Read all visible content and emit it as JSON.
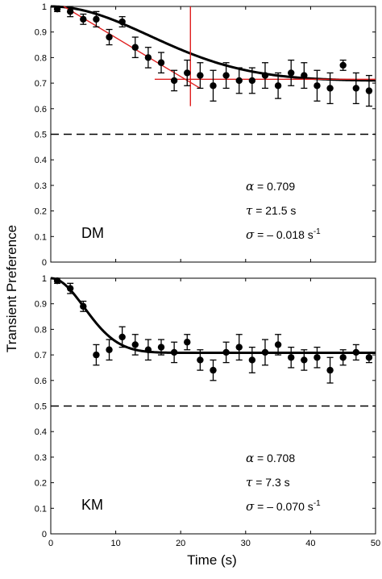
{
  "figure": {
    "ylabel": "Transient Preference",
    "xlabel": "Time (s)"
  },
  "chart_data": [
    {
      "type": "scatter",
      "panel_label": "DM",
      "xlim": [
        0,
        50
      ],
      "ylim": [
        0,
        1
      ],
      "x_ticks": [
        0,
        10,
        20,
        30,
        40,
        50
      ],
      "x_tick_labels": [
        "",
        "",
        "",
        "",
        "",
        ""
      ],
      "y_ticks": [
        0,
        0.1,
        0.2,
        0.3,
        0.4,
        0.5,
        0.6,
        0.7,
        0.8,
        0.9,
        1
      ],
      "y_tick_labels": [
        "0",
        "0.1",
        "0.2",
        "0.3",
        "0.4",
        "0.5",
        "0.6",
        "0.7",
        "0.8",
        "0.9",
        "1"
      ],
      "chance_level": 0.5,
      "points": [
        {
          "x": 1,
          "y": 0.99,
          "err": 0.01
        },
        {
          "x": 3,
          "y": 0.98,
          "err": 0.02
        },
        {
          "x": 5,
          "y": 0.95,
          "err": 0.02
        },
        {
          "x": 7,
          "y": 0.95,
          "err": 0.03
        },
        {
          "x": 9,
          "y": 0.88,
          "err": 0.03
        },
        {
          "x": 11,
          "y": 0.94,
          "err": 0.02
        },
        {
          "x": 13,
          "y": 0.84,
          "err": 0.04
        },
        {
          "x": 15,
          "y": 0.8,
          "err": 0.04
        },
        {
          "x": 17,
          "y": 0.78,
          "err": 0.04
        },
        {
          "x": 19,
          "y": 0.71,
          "err": 0.04
        },
        {
          "x": 21,
          "y": 0.74,
          "err": 0.05
        },
        {
          "x": 23,
          "y": 0.73,
          "err": 0.05
        },
        {
          "x": 25,
          "y": 0.69,
          "err": 0.06
        },
        {
          "x": 27,
          "y": 0.73,
          "err": 0.05
        },
        {
          "x": 29,
          "y": 0.71,
          "err": 0.05
        },
        {
          "x": 31,
          "y": 0.71,
          "err": 0.05
        },
        {
          "x": 33,
          "y": 0.73,
          "err": 0.05
        },
        {
          "x": 35,
          "y": 0.69,
          "err": 0.05
        },
        {
          "x": 37,
          "y": 0.74,
          "err": 0.05
        },
        {
          "x": 39,
          "y": 0.73,
          "err": 0.05
        },
        {
          "x": 41,
          "y": 0.69,
          "err": 0.06
        },
        {
          "x": 43,
          "y": 0.68,
          "err": 0.06
        },
        {
          "x": 45,
          "y": 0.77,
          "err": 0.02
        },
        {
          "x": 47,
          "y": 0.68,
          "err": 0.06
        },
        {
          "x": 49,
          "y": 0.67,
          "err": 0.06
        }
      ],
      "fit": {
        "alpha": 0.709,
        "tau": 21.5,
        "sigma": -0.018
      },
      "fit_color": "#000000",
      "guide": {
        "color": "#e02020",
        "tangent": {
          "x0": 2,
          "y0": 1.0,
          "x1": 23,
          "y1": 0.68
        },
        "asymptote": {
          "x0": 16,
          "x1": 50,
          "y": 0.715
        },
        "vertical": {
          "x": 21.5,
          "y0": 0.61,
          "y1": 1.0
        }
      },
      "annotations": [
        {
          "symbol": "α",
          "text": " = 0.709"
        },
        {
          "symbol": "τ",
          "text": " = 21.5 s"
        },
        {
          "symbol": "σ",
          "text": " = – 0.018 s",
          "sup": "-1"
        }
      ]
    },
    {
      "type": "scatter",
      "panel_label": "KM",
      "xlim": [
        0,
        50
      ],
      "ylim": [
        0,
        1
      ],
      "x_ticks": [
        0,
        10,
        20,
        30,
        40,
        50
      ],
      "x_tick_labels": [
        "0",
        "10",
        "20",
        "30",
        "40",
        "50"
      ],
      "y_ticks": [
        0,
        0.1,
        0.2,
        0.3,
        0.4,
        0.5,
        0.6,
        0.7,
        0.8,
        0.9,
        1
      ],
      "y_tick_labels": [
        "0",
        "0.1",
        "0.2",
        "0.3",
        "0.4",
        "0.5",
        "0.6",
        "0.7",
        "0.8",
        "0.9",
        "1"
      ],
      "chance_level": 0.5,
      "points": [
        {
          "x": 1,
          "y": 0.99,
          "err": 0.01
        },
        {
          "x": 3,
          "y": 0.96,
          "err": 0.02
        },
        {
          "x": 5,
          "y": 0.89,
          "err": 0.02
        },
        {
          "x": 7,
          "y": 0.7,
          "err": 0.04
        },
        {
          "x": 9,
          "y": 0.72,
          "err": 0.04
        },
        {
          "x": 11,
          "y": 0.77,
          "err": 0.04
        },
        {
          "x": 13,
          "y": 0.74,
          "err": 0.04
        },
        {
          "x": 15,
          "y": 0.72,
          "err": 0.04
        },
        {
          "x": 17,
          "y": 0.73,
          "err": 0.03
        },
        {
          "x": 19,
          "y": 0.71,
          "err": 0.04
        },
        {
          "x": 21,
          "y": 0.75,
          "err": 0.03
        },
        {
          "x": 23,
          "y": 0.68,
          "err": 0.04
        },
        {
          "x": 25,
          "y": 0.64,
          "err": 0.04
        },
        {
          "x": 27,
          "y": 0.71,
          "err": 0.04
        },
        {
          "x": 29,
          "y": 0.73,
          "err": 0.05
        },
        {
          "x": 31,
          "y": 0.68,
          "err": 0.05
        },
        {
          "x": 33,
          "y": 0.71,
          "err": 0.05
        },
        {
          "x": 35,
          "y": 0.74,
          "err": 0.04
        },
        {
          "x": 37,
          "y": 0.69,
          "err": 0.04
        },
        {
          "x": 39,
          "y": 0.68,
          "err": 0.04
        },
        {
          "x": 41,
          "y": 0.69,
          "err": 0.04
        },
        {
          "x": 43,
          "y": 0.64,
          "err": 0.05
        },
        {
          "x": 45,
          "y": 0.69,
          "err": 0.03
        },
        {
          "x": 47,
          "y": 0.71,
          "err": 0.03
        },
        {
          "x": 49,
          "y": 0.69,
          "err": 0.02
        }
      ],
      "fit": {
        "alpha": 0.708,
        "tau": 7.3,
        "sigma": -0.07
      },
      "fit_color": "#000000",
      "annotations": [
        {
          "symbol": "α",
          "text": " = 0.708"
        },
        {
          "symbol": "τ",
          "text": " = 7.3 s"
        },
        {
          "symbol": "σ",
          "text": " = – 0.070 s",
          "sup": "-1"
        }
      ]
    }
  ]
}
